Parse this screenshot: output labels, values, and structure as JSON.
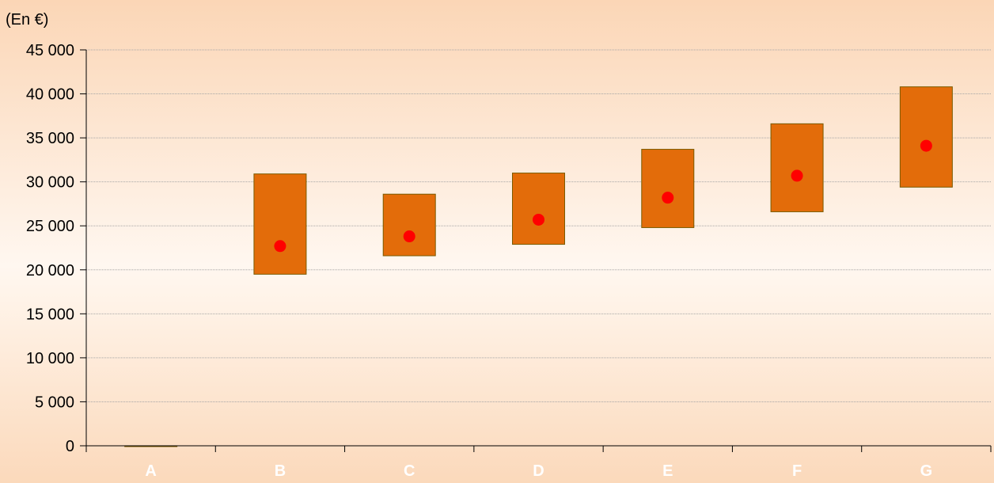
{
  "chart_data": {
    "type": "bar",
    "subtype": "floating-range-with-point",
    "title": "",
    "ylabel": "(En €)",
    "xlabel": "",
    "ylim": [
      0,
      45000
    ],
    "yticks": [
      0,
      5000,
      10000,
      15000,
      20000,
      25000,
      30000,
      35000,
      40000,
      45000
    ],
    "ytick_labels": [
      "0",
      "5 000",
      "10 000",
      "15 000",
      "20 000",
      "25 000",
      "30 000",
      "35 000",
      "40 000",
      "45 000"
    ],
    "grid": true,
    "categories": [
      "A",
      "B",
      "C",
      "D",
      "E",
      "F",
      "G"
    ],
    "series": [
      {
        "type": "range",
        "low": [
          0,
          19500,
          21600,
          22900,
          24800,
          26600,
          29400
        ],
        "high": [
          0,
          30900,
          28600,
          31000,
          33700,
          36600,
          40800
        ]
      },
      {
        "type": "point",
        "values": [
          null,
          22700,
          23800,
          25700,
          28200,
          30700,
          34100
        ]
      }
    ],
    "colors": {
      "range_fill": "#e36c0a",
      "range_stroke": "#7a5a00",
      "point": "#ff0000",
      "axis": "#000000",
      "grid": "#a6a6a6",
      "category_label": "#ffffff"
    }
  }
}
